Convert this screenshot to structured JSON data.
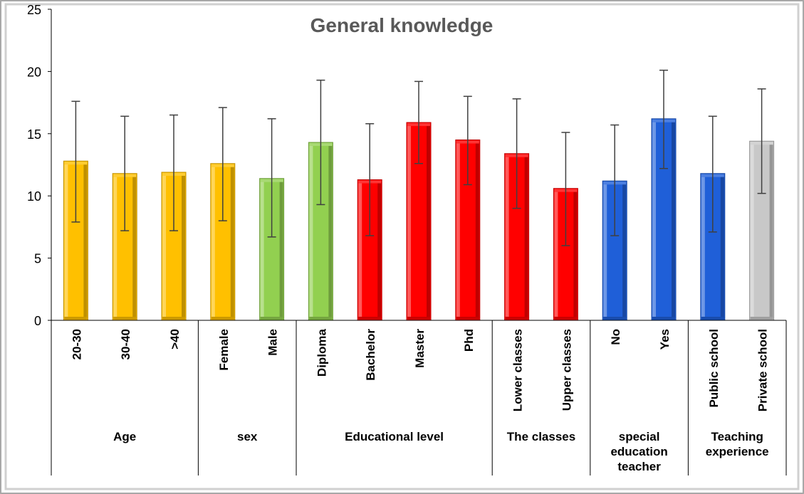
{
  "chart_data": {
    "type": "bar",
    "title": "General knowledge",
    "xlabel": "",
    "ylabel": "",
    "ylim": [
      0,
      25
    ],
    "yticks": [
      0,
      5,
      10,
      15,
      20,
      25
    ],
    "grid": false,
    "legend": "none",
    "categories": [
      "20-30",
      "30-40",
      ">40",
      "Female",
      "Male",
      "Diploma",
      "Bachelor",
      "Master",
      "Phd",
      "Lower classes",
      "Upper classes",
      "No",
      "Yes",
      "Public school",
      "Private school"
    ],
    "values": [
      12.8,
      11.8,
      11.9,
      12.6,
      11.4,
      14.3,
      11.3,
      15.9,
      14.5,
      13.4,
      10.6,
      11.2,
      16.2,
      11.8,
      14.4
    ],
    "error_low": [
      7.9,
      7.2,
      7.2,
      8.0,
      6.7,
      9.3,
      6.8,
      12.6,
      10.9,
      9.0,
      6.0,
      6.8,
      12.2,
      7.1,
      10.2
    ],
    "error_high": [
      17.6,
      16.4,
      16.5,
      17.1,
      16.2,
      19.3,
      15.8,
      19.2,
      18.0,
      17.8,
      15.1,
      15.7,
      20.1,
      16.4,
      18.6
    ],
    "bar_colors": [
      "#FFC000",
      "#FFC000",
      "#FFC000",
      "#FFC000",
      "#92D050",
      "#92D050",
      "#FF0000",
      "#FF0000",
      "#FF0000",
      "#FF0000",
      "#FF0000",
      "#1F5FD8",
      "#1F5FD8",
      "#1F5FD8",
      "#C8C8C8"
    ],
    "groups": [
      {
        "label": "Age",
        "count": 3
      },
      {
        "label": "sex",
        "count": 2
      },
      {
        "label": "Educational level",
        "count": 4
      },
      {
        "label": "The classes",
        "count": 2
      },
      {
        "label": "special education teacher",
        "count": 2
      },
      {
        "label": "Teaching experience",
        "count": 2
      }
    ]
  }
}
